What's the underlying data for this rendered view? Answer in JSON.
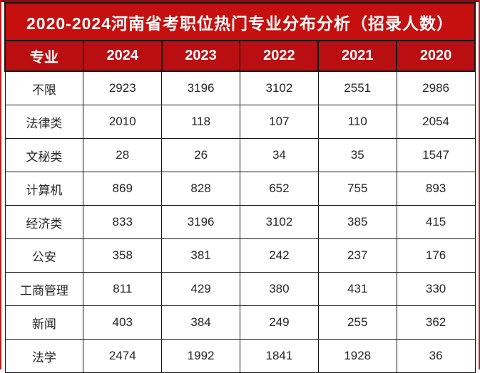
{
  "title": "2020-2024河南省考职位热门专业分布分析（招录人数）",
  "colors": {
    "title_bg": "#c5100f",
    "header_bg": "#b90f12",
    "border": "#161616",
    "body_text": "#262626",
    "title_text": "#ffffff",
    "edge_line": "#c5191c",
    "top_line": "#8f0b0d"
  },
  "chart_data": {
    "type": "table",
    "title": "2020-2024河南省考职位热门专业分布分析（招录人数）",
    "columns": [
      "专业",
      "2024",
      "2023",
      "2022",
      "2021",
      "2020"
    ],
    "rows": [
      {
        "label": "不限",
        "values": [
          2923,
          3196,
          3102,
          2551,
          2986
        ]
      },
      {
        "label": "法律类",
        "values": [
          2010,
          118,
          107,
          110,
          2054
        ]
      },
      {
        "label": "文秘类",
        "values": [
          28,
          26,
          34,
          35,
          1547
        ]
      },
      {
        "label": "计算机",
        "values": [
          869,
          828,
          652,
          755,
          893
        ]
      },
      {
        "label": "经济类",
        "values": [
          833,
          3196,
          3102,
          385,
          415
        ]
      },
      {
        "label": "公安",
        "values": [
          358,
          381,
          242,
          237,
          176
        ]
      },
      {
        "label": "工商管理",
        "values": [
          811,
          429,
          380,
          431,
          330
        ]
      },
      {
        "label": "新闻",
        "values": [
          403,
          384,
          249,
          255,
          362
        ]
      },
      {
        "label": "法学",
        "values": [
          2474,
          1992,
          1841,
          1928,
          36
        ]
      }
    ]
  }
}
